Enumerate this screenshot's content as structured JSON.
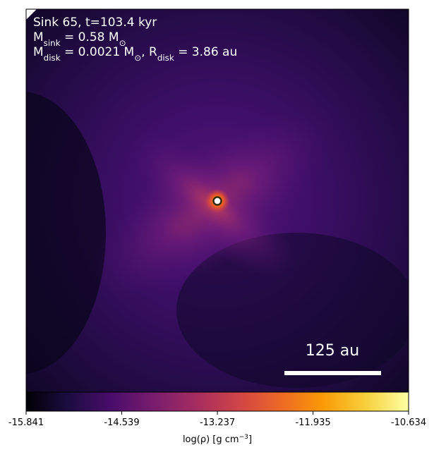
{
  "chart_data": {
    "type": "heatmap",
    "colormap": "inferno",
    "annotations": [
      [
        {
          "text": "Sink 65, t=103.4 kyr"
        }
      ],
      [
        {
          "text": "M"
        },
        {
          "sub": "sink"
        },
        {
          "text": " = 0.58 M"
        },
        {
          "sub": "⊙"
        }
      ],
      [
        {
          "text": "M"
        },
        {
          "sub": "disk"
        },
        {
          "text": " = 0.0021 M"
        },
        {
          "sub": "⊙"
        },
        {
          "text": ", R"
        },
        {
          "sub": "disk"
        },
        {
          "text": " = 3.86 au"
        }
      ]
    ],
    "scale_bar_label": "125 au",
    "colorbar": {
      "lim": [
        -15.841,
        -10.634
      ],
      "ticks": [
        -15.841,
        -14.539,
        -13.237,
        -11.935,
        -10.634
      ],
      "label": [
        {
          "text": "log(ρ) [g cm"
        },
        {
          "sup": "−3"
        },
        {
          "text": "]"
        }
      ]
    }
  }
}
